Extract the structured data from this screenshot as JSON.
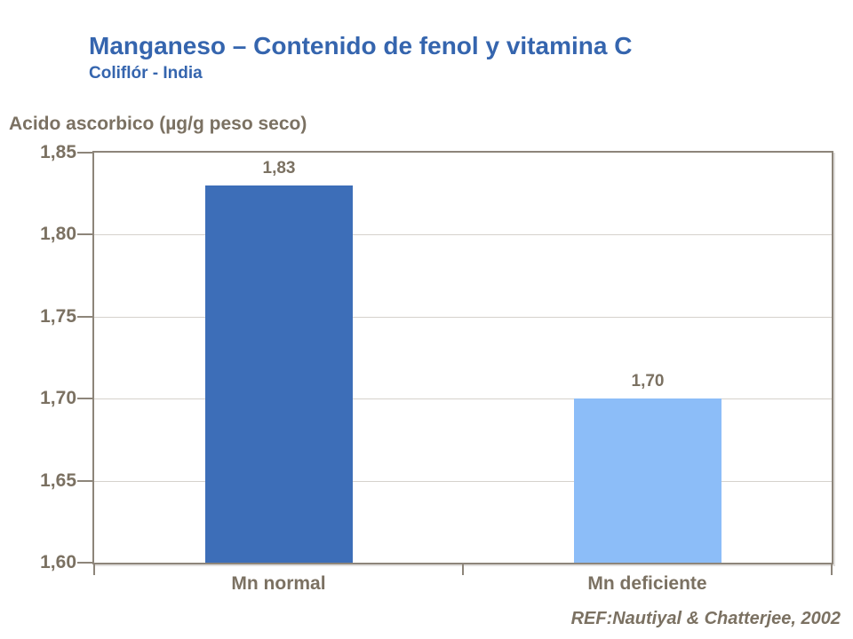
{
  "header": {
    "title": "Manganeso – Contenido de fenol y vitamina C",
    "subtitle": "Coliflór - India"
  },
  "footer": {
    "reference": "REF:Nautiyal & Chatterjee, 2002"
  },
  "colors": {
    "title_blue": "#3565AE",
    "label_gray_brown": "#7B7162",
    "axis_line": "#8D857A",
    "gridline": "#D5D2CC",
    "bar_mn_normal": "#3D6EB8",
    "bar_mn_deficiente": "#8CBDF8"
  },
  "chart_data": {
    "type": "bar",
    "title": "Manganeso – Contenido de fenol y vitamina C",
    "subtitle": "Coliflór - India",
    "categories": [
      "Mn normal",
      "Mn deficiente"
    ],
    "values": [
      1.83,
      1.7
    ],
    "value_labels": [
      "1,83",
      "1,70"
    ],
    "bar_colors": [
      "#3D6EB8",
      "#8CBDF8"
    ],
    "xlabel": "",
    "ylabel": "Acido ascorbico (µg/g peso seco)",
    "ylim": [
      1.6,
      1.85
    ],
    "ytick_interval": 0.05,
    "ytick_labels_top_to_bottom": [
      "1,85",
      "1,80",
      "1,75",
      "1,70",
      "1,65",
      "1,60"
    ],
    "grid": true,
    "legend": "none",
    "decimal_separator": ",",
    "annotation": "REF:Nautiyal & Chatterjee, 2002"
  }
}
